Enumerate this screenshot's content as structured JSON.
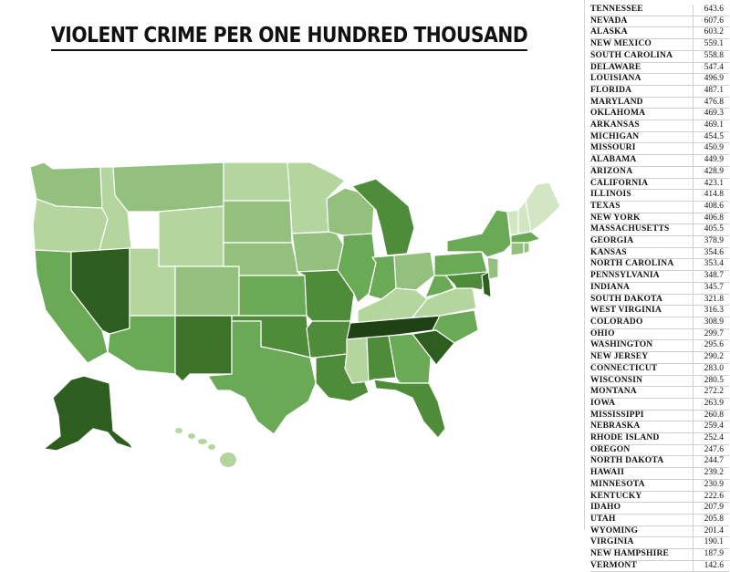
{
  "title": "VIOLENT CRIME PER ONE HUNDRED THOUSAND",
  "colors": {
    "darkest": "#2e5e1f",
    "dark": "#4e8c3a",
    "medium": "#6aa955",
    "light": "#94c07e",
    "lighter": "#b4d69e",
    "lightest": "#d2e6c4"
  },
  "rows": [
    {
      "state": "TENNESSEE",
      "value": "643.6"
    },
    {
      "state": "NEVADA",
      "value": "607.6"
    },
    {
      "state": "ALASKA",
      "value": "603.2"
    },
    {
      "state": "NEW MEXICO",
      "value": "559.1"
    },
    {
      "state": "SOUTH CAROLINA",
      "value": "558.8"
    },
    {
      "state": "DELAWARE",
      "value": "547.4"
    },
    {
      "state": "LOUISIANA",
      "value": "496.9"
    },
    {
      "state": "FLORIDA",
      "value": "487.1"
    },
    {
      "state": "MARYLAND",
      "value": "476.8"
    },
    {
      "state": "OKLAHOMA",
      "value": "469.3"
    },
    {
      "state": "ARKANSAS",
      "value": "469.1"
    },
    {
      "state": "MICHIGAN",
      "value": "454.5"
    },
    {
      "state": "MISSOURI",
      "value": "450.9"
    },
    {
      "state": "ALABAMA",
      "value": "449.9"
    },
    {
      "state": "ARIZONA",
      "value": "428.9"
    },
    {
      "state": "CALIFORNIA",
      "value": "423.1"
    },
    {
      "state": "ILLINOIS",
      "value": "414.8"
    },
    {
      "state": "TEXAS",
      "value": "408.6"
    },
    {
      "state": "NEW YORK",
      "value": "406.8"
    },
    {
      "state": "MASSACHUSETTS",
      "value": "405.5"
    },
    {
      "state": "GEORGIA",
      "value": "378.9"
    },
    {
      "state": "KANSAS",
      "value": "354.6"
    },
    {
      "state": "NORTH CAROLINA",
      "value": "353.4"
    },
    {
      "state": "PENNSYLVANIA",
      "value": "348.7"
    },
    {
      "state": "INDIANA",
      "value": "345.7"
    },
    {
      "state": "SOUTH DAKOTA",
      "value": "321.8"
    },
    {
      "state": "WEST VIRGINIA",
      "value": "316.3"
    },
    {
      "state": "COLORADO",
      "value": "308.9"
    },
    {
      "state": "OHIO",
      "value": "299.7"
    },
    {
      "state": "WASHINGTON",
      "value": "295.6"
    },
    {
      "state": "NEW JERSEY",
      "value": "290.2"
    },
    {
      "state": "CONNECTICUT",
      "value": "283.0"
    },
    {
      "state": "WISCONSIN",
      "value": "280.5"
    },
    {
      "state": "MONTANA",
      "value": "272.2"
    },
    {
      "state": "IOWA",
      "value": "263.9"
    },
    {
      "state": "MISSISSIPPI",
      "value": "260.8"
    },
    {
      "state": "NEBRASKA",
      "value": "259.4"
    },
    {
      "state": "RHODE ISLAND",
      "value": "252.4"
    },
    {
      "state": "OREGON",
      "value": "247.6"
    },
    {
      "state": "NORTH DAKOTA",
      "value": "244.7"
    },
    {
      "state": "HAWAII",
      "value": "239.2"
    },
    {
      "state": "MINNESOTA",
      "value": "230.9"
    },
    {
      "state": "KENTUCKY",
      "value": "222.6"
    },
    {
      "state": "IDAHO",
      "value": "207.9"
    },
    {
      "state": "UTAH",
      "value": "205.8"
    },
    {
      "state": "WYOMING",
      "value": "201.4"
    },
    {
      "state": "VIRGINIA",
      "value": "190.1"
    },
    {
      "state": "NEW HAMPSHIRE",
      "value": "187.9"
    },
    {
      "state": "VERMONT",
      "value": "142.6"
    }
  ]
}
